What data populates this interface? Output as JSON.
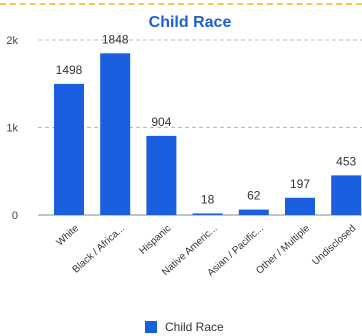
{
  "colors": {
    "bar": "#1a5fe0",
    "title": "#1f5fd6",
    "grid": "#bbbbbb",
    "axis": "#888888",
    "top_border": "#f2c94c"
  },
  "chart_data": {
    "type": "bar",
    "title": "Child Race",
    "categories": [
      "White",
      "Black / Africa...",
      "Hispanic",
      "Native Americ...",
      "Asian / Pacific...",
      "Other / Multiple",
      "Undisclosed"
    ],
    "series": [
      {
        "name": "Child Race",
        "values": [
          1498,
          1848,
          904,
          18,
          62,
          197,
          453
        ]
      }
    ],
    "ylim": [
      0,
      2000
    ],
    "yticks": [
      0,
      1000,
      2000
    ],
    "ytick_labels": [
      "0",
      "1k",
      "2k"
    ],
    "xlabel": "",
    "ylabel": "",
    "grid": true,
    "legend": "bottom"
  }
}
